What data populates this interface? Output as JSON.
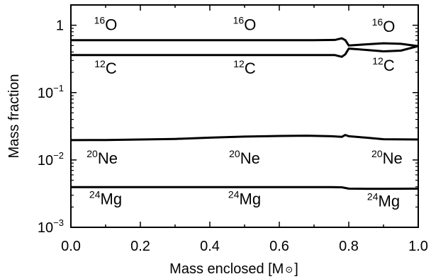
{
  "chart_data": {
    "type": "line",
    "xlabel": "Mass enclosed [M",
    "xlabel_symbol": "⊙",
    "xlabel_close": "]",
    "ylabel": "Mass fraction",
    "xlim": [
      0.0,
      1.0
    ],
    "ylim": [
      0.001,
      2.0
    ],
    "yscale": "log",
    "grid": false,
    "legend": "none",
    "x_ticks": [
      0.0,
      0.2,
      0.4,
      0.6,
      0.8,
      1.0
    ],
    "x_tick_labels": [
      "0.0",
      "0.2",
      "0.4",
      "0.6",
      "0.8",
      "1.0"
    ],
    "y_ticks": [
      1,
      0.1,
      0.01,
      0.001
    ],
    "y_tick_labels": [
      {
        "base": "1",
        "exp": ""
      },
      {
        "base": "10",
        "exp": "−1"
      },
      {
        "base": "10",
        "exp": "−2"
      },
      {
        "base": "10",
        "exp": "−3"
      }
    ],
    "series": [
      {
        "x": [
          0.0,
          0.2,
          0.4,
          0.6,
          0.7,
          0.76,
          0.78,
          0.79,
          0.8,
          0.85,
          0.9,
          0.95,
          1.0
        ],
        "values": [
          0.6,
          0.6,
          0.6,
          0.6,
          0.6,
          0.605,
          0.64,
          0.6,
          0.5,
          0.52,
          0.54,
          0.53,
          0.49
        ]
      },
      {
        "x": [
          0.0,
          0.2,
          0.4,
          0.6,
          0.7,
          0.76,
          0.78,
          0.79,
          0.8,
          0.85,
          0.9,
          0.95,
          1.0
        ],
        "values": [
          0.36,
          0.36,
          0.36,
          0.36,
          0.36,
          0.36,
          0.34,
          0.37,
          0.45,
          0.43,
          0.41,
          0.42,
          0.49
        ]
      },
      {
        "x": [
          0.0,
          0.1,
          0.2,
          0.3,
          0.4,
          0.5,
          0.6,
          0.68,
          0.75,
          0.78,
          0.79,
          0.8,
          0.85,
          0.9,
          1.0
        ],
        "values": [
          0.0197,
          0.0198,
          0.0201,
          0.0205,
          0.0214,
          0.0222,
          0.0227,
          0.0229,
          0.0225,
          0.022,
          0.0235,
          0.0225,
          0.0214,
          0.0203,
          0.0201
        ]
      },
      {
        "x": [
          0.0,
          0.2,
          0.4,
          0.6,
          0.75,
          0.78,
          0.8,
          0.85,
          0.9,
          1.0
        ],
        "values": [
          0.00395,
          0.00395,
          0.00395,
          0.00395,
          0.00395,
          0.00393,
          0.00375,
          0.00373,
          0.00373,
          0.00375
        ]
      }
    ],
    "annotations": [
      {
        "base": "O",
        "sup": "16",
        "x": 0.1,
        "y": 0.85
      },
      {
        "base": "O",
        "sup": "16",
        "x": 0.5,
        "y": 0.85
      },
      {
        "base": "O",
        "sup": "16",
        "x": 0.9,
        "y": 0.8
      },
      {
        "base": "C",
        "sup": "12",
        "x": 0.1,
        "y": 0.19
      },
      {
        "base": "C",
        "sup": "12",
        "x": 0.5,
        "y": 0.19
      },
      {
        "base": "C",
        "sup": "12",
        "x": 0.9,
        "y": 0.21
      },
      {
        "base": "Ne",
        "sup": "20",
        "x": 0.09,
        "y": 0.0088
      },
      {
        "base": "Ne",
        "sup": "20",
        "x": 0.5,
        "y": 0.0088
      },
      {
        "base": "Ne",
        "sup": "20",
        "x": 0.91,
        "y": 0.0088
      },
      {
        "base": "Mg",
        "sup": "24",
        "x": 0.1,
        "y": 0.0022
      },
      {
        "base": "Mg",
        "sup": "24",
        "x": 0.5,
        "y": 0.0022
      },
      {
        "base": "Mg",
        "sup": "24",
        "x": 0.9,
        "y": 0.00205
      }
    ]
  }
}
